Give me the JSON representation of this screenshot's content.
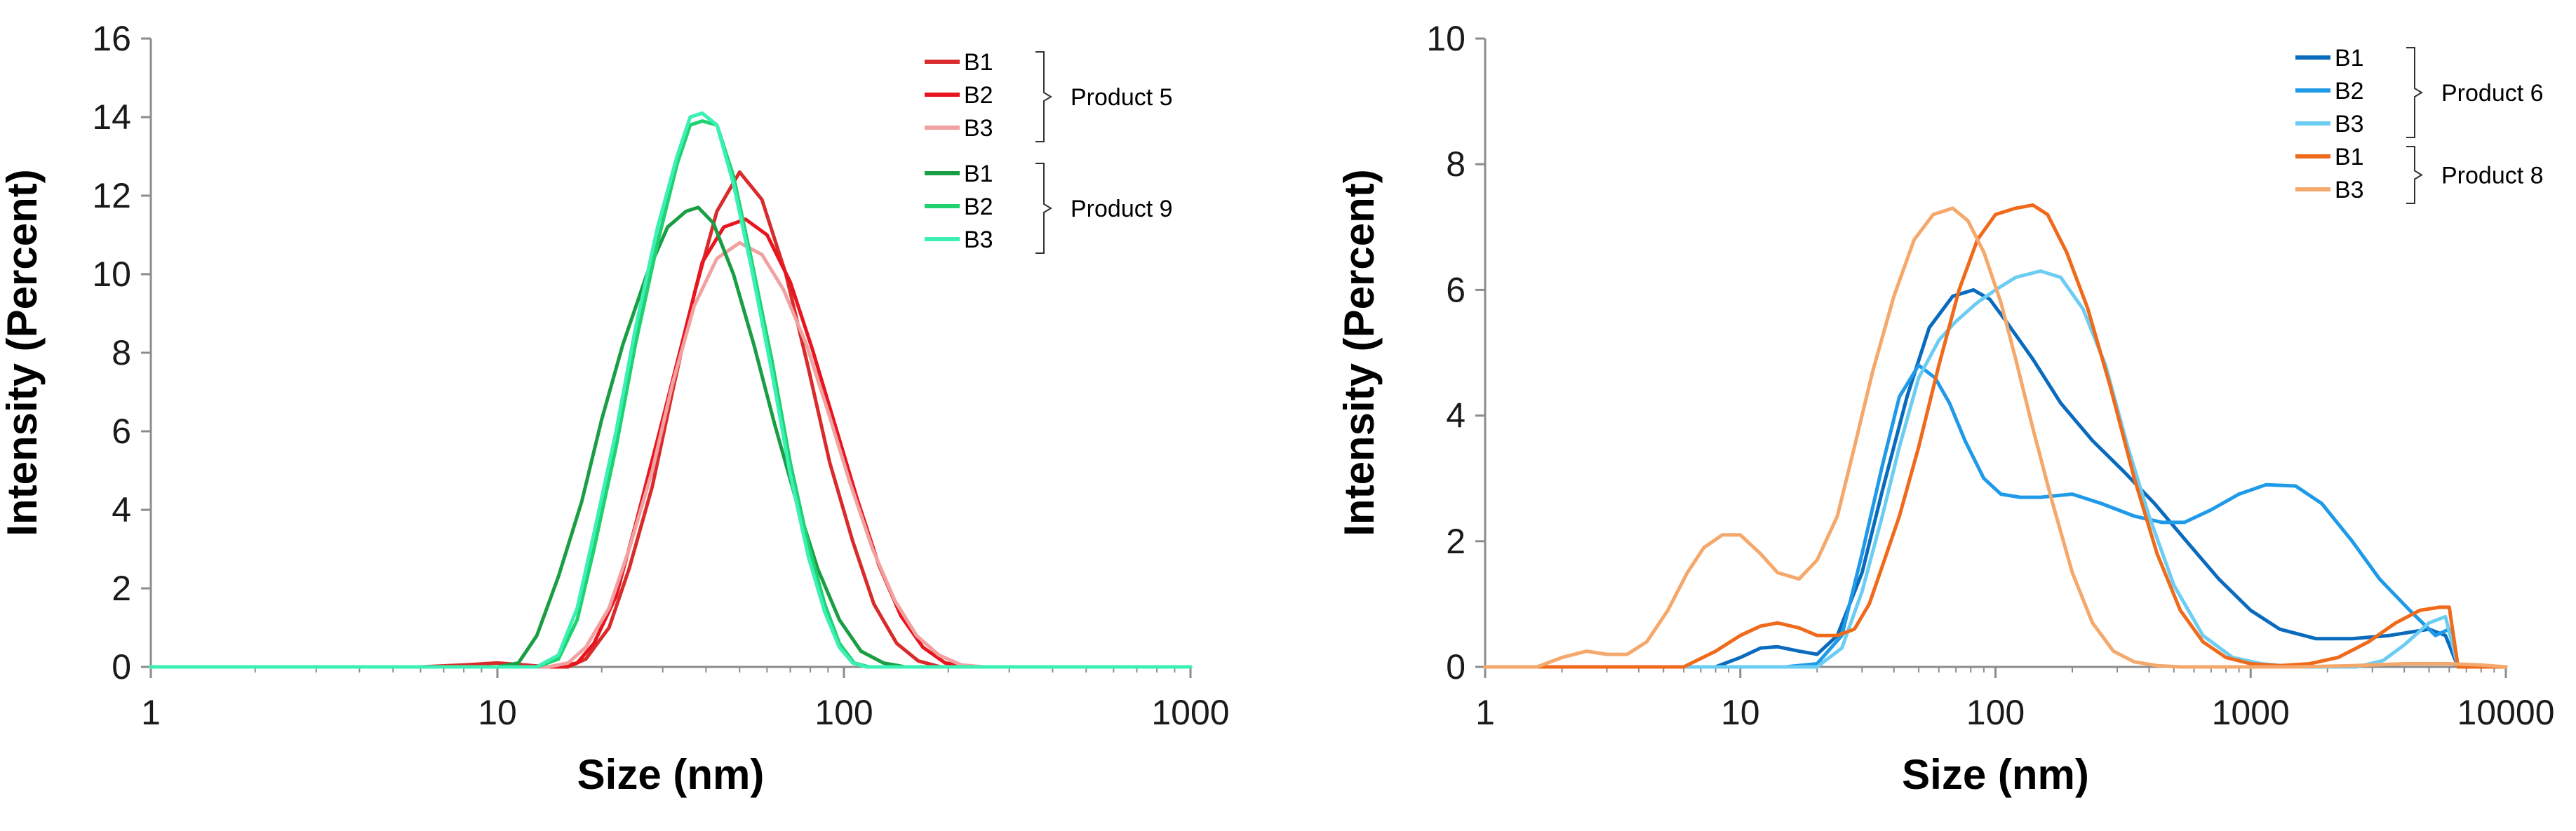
{
  "chart_data": [
    {
      "type": "line",
      "id": "left",
      "xscale": "log",
      "xlim": [
        1,
        1000
      ],
      "ylim": [
        0,
        16
      ],
      "xticks": [
        1,
        10,
        100,
        1000
      ],
      "xtick_labels": [
        "1",
        "10",
        "100",
        "1000"
      ],
      "yticks": [
        0,
        2,
        4,
        6,
        8,
        10,
        12,
        14,
        16
      ],
      "ytick_labels": [
        "0",
        "2",
        "4",
        "6",
        "8",
        "10",
        "12",
        "14",
        "16"
      ],
      "xlabel": "Size (nm)",
      "ylabel": "Intensity (Percent)",
      "legend_groups": [
        {
          "label": "Product 5",
          "entries": [
            0,
            1,
            2
          ]
        },
        {
          "label": "Product 9",
          "entries": [
            3,
            4,
            5
          ]
        }
      ],
      "series": [
        {
          "name": "B1",
          "color": "#d92b2b",
          "x": [
            1,
            6,
            8,
            10,
            12,
            14,
            16,
            18,
            21,
            24,
            28,
            32,
            37,
            43,
            50,
            58,
            68,
            79,
            91,
            106,
            122,
            142,
            164,
            190,
            220,
            255,
            1000
          ],
          "y": [
            0,
            0,
            0.05,
            0.1,
            0.05,
            0,
            0,
            0.2,
            1.0,
            2.5,
            4.6,
            7.0,
            9.5,
            11.6,
            12.6,
            11.9,
            10.0,
            7.6,
            5.2,
            3.2,
            1.6,
            0.6,
            0.15,
            0,
            0,
            0,
            0
          ]
        },
        {
          "name": "B2",
          "color": "#e8141e",
          "x": [
            1,
            15,
            17,
            19,
            22,
            25,
            29,
            34,
            39,
            45,
            52,
            60,
            70,
            81,
            94,
            109,
            126,
            146,
            169,
            196,
            228,
            1000
          ],
          "y": [
            0,
            0,
            0.1,
            0.6,
            1.8,
            3.6,
            5.8,
            8.2,
            10.3,
            11.2,
            11.4,
            11.0,
            9.8,
            8.1,
            6.2,
            4.3,
            2.6,
            1.3,
            0.5,
            0.1,
            0,
            0
          ]
        },
        {
          "name": "B3",
          "color": "#f2a1a1",
          "x": [
            1,
            14,
            16,
            18,
            21,
            24,
            28,
            32,
            37,
            43,
            50,
            58,
            67,
            78,
            90,
            104,
            121,
            140,
            162,
            188,
            218,
            253,
            1000
          ],
          "y": [
            0,
            0,
            0.1,
            0.5,
            1.5,
            3.0,
            5.0,
            7.2,
            9.2,
            10.4,
            10.8,
            10.5,
            9.6,
            8.2,
            6.5,
            4.7,
            3.0,
            1.7,
            0.8,
            0.3,
            0.05,
            0,
            0
          ]
        },
        {
          "name": "B1",
          "color": "#1a9e44",
          "x": [
            1,
            10,
            11.5,
            13,
            15,
            17.5,
            20,
            23,
            27,
            31,
            35,
            38,
            42,
            48,
            55,
            63,
            73,
            84,
            97,
            112,
            130,
            150,
            1000
          ],
          "y": [
            0,
            0,
            0.1,
            0.8,
            2.3,
            4.2,
            6.3,
            8.2,
            10.0,
            11.2,
            11.6,
            11.7,
            11.3,
            10.0,
            8.2,
            6.2,
            4.2,
            2.5,
            1.2,
            0.4,
            0.1,
            0,
            0
          ]
        },
        {
          "name": "B2",
          "color": "#1fd16f",
          "x": [
            1,
            13,
            15,
            17,
            19,
            22,
            25,
            29,
            33,
            36,
            39,
            43,
            48,
            54,
            62,
            70,
            79,
            88,
            97,
            107,
            118,
            1000
          ],
          "y": [
            0,
            0,
            0.2,
            1.2,
            3.0,
            5.6,
            8.2,
            10.8,
            12.8,
            13.8,
            13.9,
            13.8,
            12.5,
            10.4,
            7.8,
            5.2,
            3.1,
            1.6,
            0.6,
            0.1,
            0,
            0
          ]
        },
        {
          "name": "B3",
          "color": "#3bf0b4",
          "x": [
            1,
            13,
            15,
            17,
            19,
            22,
            25,
            29,
            33,
            36,
            39,
            43,
            48,
            54,
            62,
            70,
            79,
            88,
            97,
            106,
            116,
            1000
          ],
          "y": [
            0,
            0,
            0.3,
            1.5,
            3.4,
            6.0,
            8.6,
            11.2,
            13.0,
            14.0,
            14.1,
            13.8,
            12.3,
            10.2,
            7.5,
            4.9,
            2.8,
            1.4,
            0.5,
            0.1,
            0,
            0
          ]
        }
      ]
    },
    {
      "type": "line",
      "id": "right",
      "xscale": "log",
      "xlim": [
        1,
        10000
      ],
      "ylim": [
        0,
        10
      ],
      "xticks": [
        1,
        10,
        100,
        1000,
        10000
      ],
      "xtick_labels": [
        "1",
        "10",
        "100",
        "1000",
        "10000"
      ],
      "yticks": [
        0,
        2,
        4,
        6,
        8,
        10
      ],
      "ytick_labels": [
        "0",
        "2",
        "4",
        "6",
        "8",
        "10"
      ],
      "xlabel": "Size (nm)",
      "ylabel": "Intensity (Percent)",
      "legend_groups": [
        {
          "label": "Product 6",
          "entries": [
            0,
            1,
            2
          ]
        },
        {
          "label": "Product 8",
          "entries": [
            3,
            4
          ]
        }
      ],
      "series": [
        {
          "name": "B1",
          "color": "#0a6bbd",
          "x": [
            1,
            8,
            10,
            12,
            14,
            17,
            20,
            24,
            30,
            36,
            45,
            55,
            68,
            82,
            95,
            110,
            140,
            180,
            240,
            320,
            420,
            560,
            750,
            1000,
            1300,
            1800,
            2500,
            3500,
            5000,
            5800,
            6500,
            10000
          ],
          "y": [
            0,
            0,
            0.15,
            0.3,
            0.32,
            0.25,
            0.2,
            0.5,
            1.5,
            2.8,
            4.3,
            5.4,
            5.9,
            6.0,
            5.85,
            5.5,
            4.9,
            4.2,
            3.6,
            3.1,
            2.6,
            2.0,
            1.4,
            0.9,
            0.6,
            0.45,
            0.45,
            0.5,
            0.6,
            0.5,
            0,
            0
          ]
        },
        {
          "name": "B2",
          "color": "#1f9ae8",
          "x": [
            1,
            15,
            20,
            25,
            30,
            36,
            42,
            50,
            58,
            66,
            76,
            90,
            105,
            125,
            150,
            200,
            260,
            350,
            450,
            550,
            700,
            900,
            1150,
            1500,
            1900,
            2500,
            3200,
            4200,
            5300,
            6000,
            6500,
            10000
          ],
          "y": [
            0,
            0,
            0.05,
            0.5,
            1.8,
            3.2,
            4.3,
            4.8,
            4.6,
            4.2,
            3.6,
            3.0,
            2.75,
            2.7,
            2.7,
            2.75,
            2.6,
            2.4,
            2.3,
            2.3,
            2.5,
            2.75,
            2.9,
            2.88,
            2.6,
            2.0,
            1.4,
            0.9,
            0.5,
            0.6,
            0,
            0
          ]
        },
        {
          "name": "B3",
          "color": "#6ccdf2",
          "x": [
            1,
            20,
            25,
            30,
            36,
            42,
            50,
            60,
            70,
            85,
            100,
            120,
            150,
            180,
            220,
            270,
            330,
            400,
            500,
            650,
            850,
            1100,
            1500,
            2000,
            2600,
            3300,
            4000,
            5000,
            5800,
            6500,
            10000
          ],
          "y": [
            0,
            0,
            0.3,
            1.2,
            2.4,
            3.5,
            4.6,
            5.2,
            5.5,
            5.8,
            6.0,
            6.2,
            6.3,
            6.2,
            5.7,
            4.8,
            3.5,
            2.4,
            1.3,
            0.5,
            0.15,
            0.05,
            0,
            0,
            0,
            0.1,
            0.35,
            0.7,
            0.8,
            0,
            0
          ]
        },
        {
          "name": "B1",
          "color": "#f06a1c",
          "x": [
            1,
            6,
            8,
            10,
            12,
            14,
            17,
            20,
            24,
            28,
            32,
            36,
            42,
            50,
            60,
            72,
            85,
            100,
            120,
            140,
            160,
            190,
            230,
            280,
            350,
            430,
            530,
            650,
            800,
            1000,
            1300,
            1700,
            2200,
            2900,
            3700,
            4600,
            5500,
            6000,
            6500,
            10000
          ],
          "y": [
            0,
            0,
            0.25,
            0.5,
            0.65,
            0.7,
            0.62,
            0.5,
            0.5,
            0.6,
            1.0,
            1.6,
            2.4,
            3.5,
            4.8,
            6.0,
            6.8,
            7.2,
            7.3,
            7.35,
            7.2,
            6.6,
            5.7,
            4.5,
            3.0,
            1.8,
            0.9,
            0.4,
            0.15,
            0.05,
            0.02,
            0.05,
            0.15,
            0.4,
            0.7,
            0.9,
            0.95,
            0.95,
            0,
            0
          ]
        },
        {
          "name": "B3",
          "color": "#f5a86b",
          "x": [
            1,
            1.6,
            2,
            2.5,
            3,
            3.6,
            4.3,
            5.2,
            6.2,
            7.2,
            8.5,
            10,
            12,
            14,
            17,
            20,
            24,
            28,
            33,
            40,
            48,
            57,
            68,
            78,
            90,
            105,
            120,
            140,
            165,
            200,
            240,
            290,
            350,
            430,
            530,
            650,
            800,
            1000,
            1500,
            2500,
            4000,
            6000,
            8000,
            10000
          ],
          "y": [
            0,
            0,
            0.15,
            0.25,
            0.2,
            0.2,
            0.4,
            0.9,
            1.5,
            1.9,
            2.1,
            2.1,
            1.8,
            1.5,
            1.4,
            1.7,
            2.4,
            3.5,
            4.7,
            5.9,
            6.8,
            7.2,
            7.3,
            7.1,
            6.6,
            5.8,
            4.9,
            3.8,
            2.7,
            1.5,
            0.7,
            0.25,
            0.08,
            0.02,
            0,
            0,
            0,
            0,
            0,
            0.02,
            0.05,
            0.05,
            0.03,
            0
          ]
        }
      ]
    }
  ]
}
